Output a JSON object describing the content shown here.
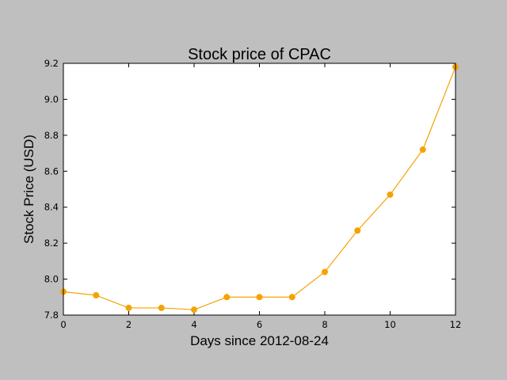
{
  "chart_data": {
    "type": "line",
    "title": "Stock price of CPAC",
    "xlabel": "Days since 2012-08-24",
    "ylabel": "Stock Price (USD)",
    "xlim": [
      0,
      12
    ],
    "ylim": [
      7.8,
      9.2
    ],
    "xticks": [
      0,
      2,
      4,
      6,
      8,
      10,
      12
    ],
    "yticks": [
      7.8,
      8.0,
      8.2,
      8.4,
      8.6,
      8.8,
      9.0,
      9.2
    ],
    "grid": false,
    "legend": "none",
    "series": [
      {
        "color": "#f5a300",
        "x": [
          0,
          1,
          2,
          3,
          4,
          5,
          6,
          7,
          8,
          9,
          10,
          11,
          12
        ],
        "y": [
          7.93,
          7.91,
          7.84,
          7.84,
          7.83,
          7.9,
          7.9,
          7.9,
          8.04,
          8.27,
          8.47,
          8.72,
          9.18
        ]
      }
    ]
  }
}
